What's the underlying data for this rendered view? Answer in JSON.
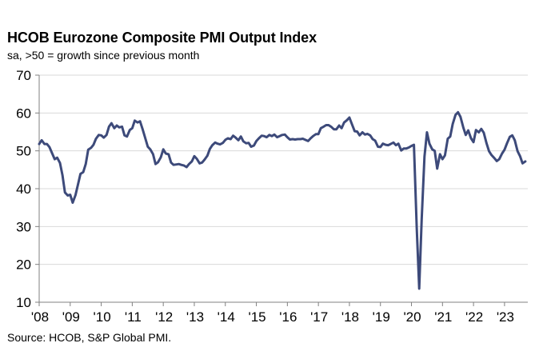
{
  "header": {
    "title": "HCOB Eurozone Composite PMI Output Index",
    "subtitle": "sa, >50 = growth  since previous  month"
  },
  "footer": {
    "source": "Source: HCOB, S&P Global  PMI."
  },
  "colors": {
    "line": "#3d4a7a",
    "grid": "#d9d9d9",
    "axis": "#808080"
  },
  "chart_data": {
    "type": "line",
    "title": "HCOB Eurozone Composite PMI Output Index",
    "subtitle": "sa, >50 = growth  since previous  month",
    "xlabel": "",
    "ylabel": "",
    "ylim": [
      10,
      70
    ],
    "yticks": [
      10,
      20,
      30,
      40,
      50,
      60,
      70
    ],
    "xlim": [
      2008.0,
      2023.75
    ],
    "xticks": [
      {
        "value": 2008,
        "label": "'08"
      },
      {
        "value": 2009,
        "label": "'09"
      },
      {
        "value": 2010,
        "label": "'10"
      },
      {
        "value": 2011,
        "label": "'11"
      },
      {
        "value": 2012,
        "label": "'12"
      },
      {
        "value": 2013,
        "label": "'13"
      },
      {
        "value": 2014,
        "label": "'14"
      },
      {
        "value": 2015,
        "label": "'15"
      },
      {
        "value": 2016,
        "label": "'16"
      },
      {
        "value": 2017,
        "label": "'17"
      },
      {
        "value": 2018,
        "label": "'18"
      },
      {
        "value": 2019,
        "label": "'19"
      },
      {
        "value": 2020,
        "label": "'20"
      },
      {
        "value": 2021,
        "label": "'21"
      },
      {
        "value": 2022,
        "label": "'22"
      },
      {
        "value": 2023,
        "label": "'23"
      }
    ],
    "grid": true,
    "series": [
      {
        "name": "Composite PMI Output Index",
        "points": [
          [
            2008.0,
            51.8
          ],
          [
            2008.08,
            52.8
          ],
          [
            2008.17,
            51.8
          ],
          [
            2008.25,
            51.8
          ],
          [
            2008.33,
            51.0
          ],
          [
            2008.42,
            49.3
          ],
          [
            2008.5,
            47.8
          ],
          [
            2008.58,
            48.2
          ],
          [
            2008.67,
            46.8
          ],
          [
            2008.75,
            43.6
          ],
          [
            2008.83,
            39.0
          ],
          [
            2008.92,
            38.2
          ],
          [
            2009.0,
            38.4
          ],
          [
            2009.08,
            36.3
          ],
          [
            2009.17,
            38.3
          ],
          [
            2009.25,
            41.1
          ],
          [
            2009.33,
            43.9
          ],
          [
            2009.42,
            44.4
          ],
          [
            2009.5,
            46.5
          ],
          [
            2009.58,
            50.3
          ],
          [
            2009.67,
            50.8
          ],
          [
            2009.75,
            51.6
          ],
          [
            2009.83,
            53.2
          ],
          [
            2009.92,
            54.2
          ],
          [
            2010.0,
            54.1
          ],
          [
            2010.08,
            53.5
          ],
          [
            2010.17,
            54.2
          ],
          [
            2010.25,
            56.4
          ],
          [
            2010.33,
            57.3
          ],
          [
            2010.42,
            56.0
          ],
          [
            2010.5,
            56.7
          ],
          [
            2010.58,
            56.2
          ],
          [
            2010.67,
            56.4
          ],
          [
            2010.75,
            54.1
          ],
          [
            2010.83,
            53.8
          ],
          [
            2010.92,
            55.5
          ],
          [
            2011.0,
            56.0
          ],
          [
            2011.08,
            58.0
          ],
          [
            2011.17,
            57.5
          ],
          [
            2011.25,
            57.8
          ],
          [
            2011.33,
            55.8
          ],
          [
            2011.42,
            53.3
          ],
          [
            2011.5,
            51.1
          ],
          [
            2011.58,
            50.4
          ],
          [
            2011.67,
            49.1
          ],
          [
            2011.75,
            46.5
          ],
          [
            2011.83,
            47.0
          ],
          [
            2011.92,
            48.3
          ],
          [
            2012.0,
            50.4
          ],
          [
            2012.08,
            49.3
          ],
          [
            2012.17,
            49.1
          ],
          [
            2012.25,
            46.9
          ],
          [
            2012.33,
            46.3
          ],
          [
            2012.42,
            46.4
          ],
          [
            2012.5,
            46.5
          ],
          [
            2012.58,
            46.3
          ],
          [
            2012.67,
            46.1
          ],
          [
            2012.75,
            45.7
          ],
          [
            2012.83,
            46.5
          ],
          [
            2012.92,
            47.2
          ],
          [
            2013.0,
            48.6
          ],
          [
            2013.08,
            47.9
          ],
          [
            2013.17,
            46.7
          ],
          [
            2013.25,
            46.9
          ],
          [
            2013.33,
            47.7
          ],
          [
            2013.42,
            48.7
          ],
          [
            2013.5,
            50.5
          ],
          [
            2013.58,
            51.5
          ],
          [
            2013.67,
            52.2
          ],
          [
            2013.75,
            51.9
          ],
          [
            2013.83,
            51.7
          ],
          [
            2013.92,
            52.1
          ],
          [
            2014.0,
            52.9
          ],
          [
            2014.08,
            53.3
          ],
          [
            2014.17,
            53.1
          ],
          [
            2014.25,
            54.0
          ],
          [
            2014.33,
            53.5
          ],
          [
            2014.42,
            52.8
          ],
          [
            2014.5,
            53.8
          ],
          [
            2014.58,
            52.5
          ],
          [
            2014.67,
            52.0
          ],
          [
            2014.75,
            52.1
          ],
          [
            2014.83,
            51.1
          ],
          [
            2014.92,
            51.4
          ],
          [
            2015.0,
            52.6
          ],
          [
            2015.08,
            53.3
          ],
          [
            2015.17,
            54.0
          ],
          [
            2015.25,
            53.9
          ],
          [
            2015.33,
            53.6
          ],
          [
            2015.42,
            54.2
          ],
          [
            2015.5,
            53.9
          ],
          [
            2015.58,
            54.3
          ],
          [
            2015.67,
            53.6
          ],
          [
            2015.75,
            53.9
          ],
          [
            2015.83,
            54.2
          ],
          [
            2015.92,
            54.3
          ],
          [
            2016.0,
            53.6
          ],
          [
            2016.08,
            53.0
          ],
          [
            2016.17,
            53.1
          ],
          [
            2016.25,
            53.0
          ],
          [
            2016.33,
            53.1
          ],
          [
            2016.42,
            53.1
          ],
          [
            2016.5,
            53.2
          ],
          [
            2016.58,
            52.9
          ],
          [
            2016.67,
            52.6
          ],
          [
            2016.75,
            53.3
          ],
          [
            2016.83,
            53.9
          ],
          [
            2016.92,
            54.4
          ],
          [
            2017.0,
            54.4
          ],
          [
            2017.08,
            56.0
          ],
          [
            2017.17,
            56.4
          ],
          [
            2017.25,
            56.8
          ],
          [
            2017.33,
            56.8
          ],
          [
            2017.42,
            56.3
          ],
          [
            2017.5,
            55.7
          ],
          [
            2017.58,
            55.7
          ],
          [
            2017.67,
            56.7
          ],
          [
            2017.75,
            56.0
          ],
          [
            2017.83,
            57.5
          ],
          [
            2017.92,
            58.1
          ],
          [
            2018.0,
            58.8
          ],
          [
            2018.08,
            57.1
          ],
          [
            2018.17,
            55.2
          ],
          [
            2018.25,
            55.1
          ],
          [
            2018.33,
            54.1
          ],
          [
            2018.42,
            54.9
          ],
          [
            2018.5,
            54.3
          ],
          [
            2018.58,
            54.5
          ],
          [
            2018.67,
            54.1
          ],
          [
            2018.75,
            53.1
          ],
          [
            2018.83,
            52.7
          ],
          [
            2018.92,
            51.1
          ],
          [
            2019.0,
            51.0
          ],
          [
            2019.08,
            51.9
          ],
          [
            2019.17,
            51.6
          ],
          [
            2019.25,
            51.5
          ],
          [
            2019.33,
            51.8
          ],
          [
            2019.42,
            52.2
          ],
          [
            2019.5,
            51.5
          ],
          [
            2019.58,
            51.9
          ],
          [
            2019.67,
            50.1
          ],
          [
            2019.75,
            50.6
          ],
          [
            2019.83,
            50.6
          ],
          [
            2019.92,
            50.9
          ],
          [
            2020.0,
            51.3
          ],
          [
            2020.08,
            51.6
          ],
          [
            2020.17,
            29.7
          ],
          [
            2020.25,
            13.6
          ],
          [
            2020.33,
            31.9
          ],
          [
            2020.42,
            48.5
          ],
          [
            2020.5,
            54.9
          ],
          [
            2020.58,
            51.9
          ],
          [
            2020.67,
            50.4
          ],
          [
            2020.75,
            50.0
          ],
          [
            2020.83,
            45.3
          ],
          [
            2020.92,
            49.1
          ],
          [
            2021.0,
            47.8
          ],
          [
            2021.08,
            48.8
          ],
          [
            2021.17,
            53.2
          ],
          [
            2021.25,
            53.8
          ],
          [
            2021.33,
            57.1
          ],
          [
            2021.42,
            59.5
          ],
          [
            2021.5,
            60.2
          ],
          [
            2021.58,
            59.0
          ],
          [
            2021.67,
            56.2
          ],
          [
            2021.75,
            54.2
          ],
          [
            2021.83,
            55.4
          ],
          [
            2021.92,
            53.3
          ],
          [
            2022.0,
            52.3
          ],
          [
            2022.08,
            55.5
          ],
          [
            2022.17,
            54.9
          ],
          [
            2022.25,
            55.8
          ],
          [
            2022.33,
            54.8
          ],
          [
            2022.42,
            52.0
          ],
          [
            2022.5,
            49.9
          ],
          [
            2022.58,
            48.9
          ],
          [
            2022.67,
            48.1
          ],
          [
            2022.75,
            47.3
          ],
          [
            2022.83,
            47.8
          ],
          [
            2022.92,
            49.3
          ],
          [
            2023.0,
            50.3
          ],
          [
            2023.08,
            52.0
          ],
          [
            2023.17,
            53.7
          ],
          [
            2023.25,
            54.1
          ],
          [
            2023.33,
            52.8
          ],
          [
            2023.42,
            49.9
          ],
          [
            2023.5,
            48.6
          ],
          [
            2023.58,
            46.7
          ],
          [
            2023.67,
            47.2
          ]
        ]
      }
    ]
  }
}
